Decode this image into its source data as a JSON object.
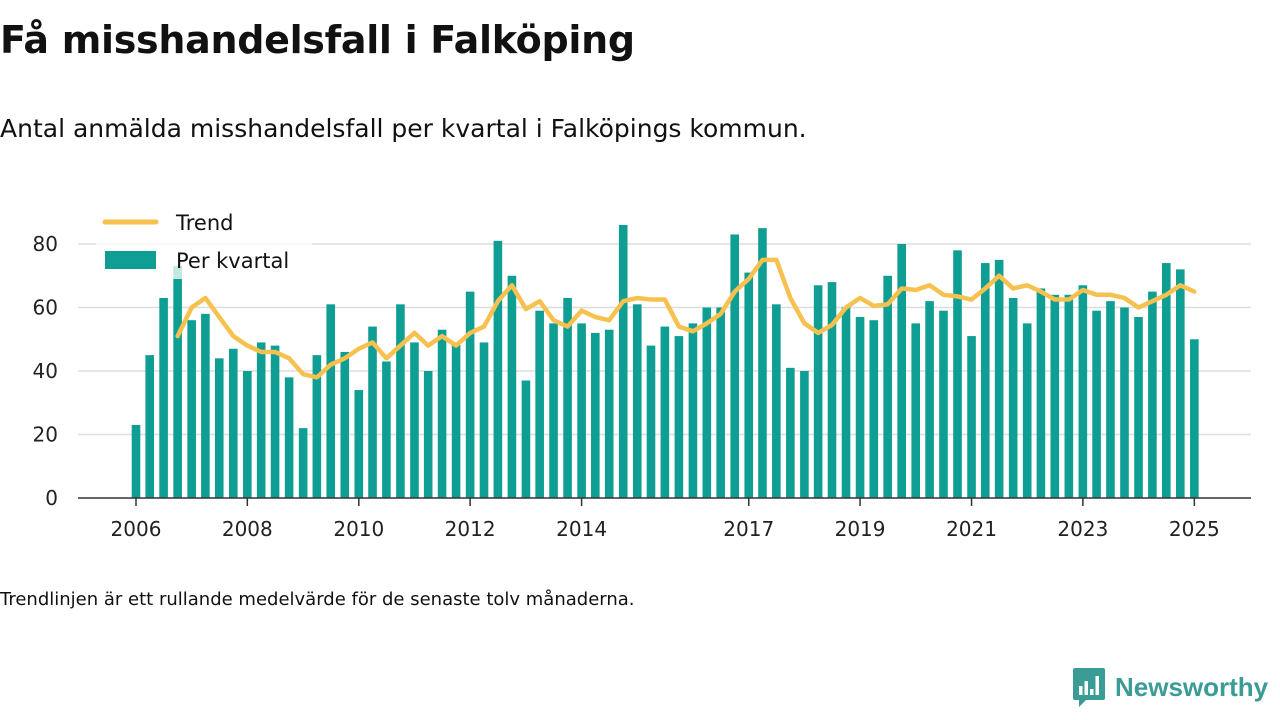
{
  "title": "Få misshandelsfall i Falköping",
  "subtitle": "Antal anmälda misshandelsfall per kvartal i Falköpings kommun.",
  "note": "Trendlinjen är ett rullande medelvärde för de senaste tolv månaderna.",
  "logo": {
    "text": "Newsworthy",
    "color": "#3a9c95"
  },
  "chart_data": {
    "type": "bar",
    "ylim": [
      0,
      92
    ],
    "yticks": [
      0,
      20,
      40,
      60,
      80
    ],
    "xticks": [
      {
        "label": "2006",
        "date": "2006-01-01"
      },
      {
        "label": "2008",
        "date": "2008-01-01"
      },
      {
        "label": "2010",
        "date": "2010-01-01"
      },
      {
        "label": "2012",
        "date": "2012-01-01"
      },
      {
        "label": "2014",
        "date": "2014-01-01"
      },
      {
        "label": "2017",
        "date": "2017-01-01"
      },
      {
        "label": "2019",
        "date": "2019-01-01"
      },
      {
        "label": "2021",
        "date": "2021-01-01"
      },
      {
        "label": "2023",
        "date": "2023-01-01"
      },
      {
        "label": "2025",
        "date": "2025-01-01"
      }
    ],
    "grid": true,
    "legend_position": "top-left",
    "series": [
      {
        "name": "Per kvartal",
        "kind": "bar",
        "color": "#0e9e93",
        "x": [
          "2006-01-01",
          "2006-04-01",
          "2006-07-01",
          "2006-10-01",
          "2007-01-01",
          "2007-04-01",
          "2007-07-01",
          "2007-10-01",
          "2008-01-01",
          "2008-04-01",
          "2008-07-01",
          "2008-10-01",
          "2009-01-01",
          "2009-04-01",
          "2009-07-01",
          "2009-10-01",
          "2010-01-01",
          "2010-04-01",
          "2010-07-01",
          "2010-10-01",
          "2011-01-01",
          "2011-04-01",
          "2011-07-01",
          "2011-10-01",
          "2012-01-01",
          "2012-04-01",
          "2012-07-01",
          "2012-10-01",
          "2013-01-01",
          "2013-04-01",
          "2013-07-01",
          "2013-10-01",
          "2014-01-01",
          "2014-04-01",
          "2014-07-01",
          "2014-10-01",
          "2015-01-01",
          "2015-04-01",
          "2015-07-01",
          "2015-10-01",
          "2016-01-01",
          "2016-04-01",
          "2016-07-01",
          "2016-10-01",
          "2017-01-01",
          "2017-04-01",
          "2017-07-01",
          "2017-10-01",
          "2018-01-01",
          "2018-04-01",
          "2018-07-01",
          "2018-10-01",
          "2019-01-01",
          "2019-04-01",
          "2019-07-01",
          "2019-10-01",
          "2020-01-01",
          "2020-04-01",
          "2020-07-01",
          "2020-10-01",
          "2021-01-01",
          "2021-04-01",
          "2021-07-01",
          "2021-10-01",
          "2022-01-01",
          "2022-04-01",
          "2022-07-01",
          "2022-10-01",
          "2023-01-01",
          "2023-04-01",
          "2023-07-01",
          "2023-10-01",
          "2024-01-01",
          "2024-04-01",
          "2024-07-01",
          "2024-10-01",
          "2025-01-01"
        ],
        "values": [
          23,
          45,
          63,
          73,
          56,
          58,
          44,
          47,
          40,
          49,
          48,
          38,
          22,
          45,
          61,
          46,
          34,
          54,
          43,
          61,
          49,
          40,
          53,
          49,
          65,
          49,
          81,
          70,
          37,
          59,
          55,
          63,
          55,
          52,
          53,
          86,
          61,
          48,
          54,
          51,
          55,
          60,
          60,
          83,
          71,
          85,
          61,
          41,
          40,
          67,
          68,
          60,
          57,
          56,
          70,
          80,
          55,
          62,
          59,
          78,
          51,
          74,
          75,
          63,
          55,
          66,
          64,
          64,
          67,
          59,
          62,
          60,
          57,
          65,
          74,
          72,
          50
        ]
      },
      {
        "name": "Trend",
        "kind": "line",
        "color": "#f6c14f",
        "x": [
          "2006-10-01",
          "2007-01-01",
          "2007-04-01",
          "2007-07-01",
          "2007-10-01",
          "2008-01-01",
          "2008-04-01",
          "2008-07-01",
          "2008-10-01",
          "2009-01-01",
          "2009-04-01",
          "2009-07-01",
          "2009-10-01",
          "2010-01-01",
          "2010-04-01",
          "2010-07-01",
          "2010-10-01",
          "2011-01-01",
          "2011-04-01",
          "2011-07-01",
          "2011-10-01",
          "2012-01-01",
          "2012-04-01",
          "2012-07-01",
          "2012-10-01",
          "2013-01-01",
          "2013-04-01",
          "2013-07-01",
          "2013-10-01",
          "2014-01-01",
          "2014-04-01",
          "2014-07-01",
          "2014-10-01",
          "2015-01-01",
          "2015-04-01",
          "2015-07-01",
          "2015-10-01",
          "2016-01-01",
          "2016-04-01",
          "2016-07-01",
          "2016-10-01",
          "2017-01-01",
          "2017-04-01",
          "2017-07-01",
          "2017-10-01",
          "2018-01-01",
          "2018-04-01",
          "2018-07-01",
          "2018-10-01",
          "2019-01-01",
          "2019-04-01",
          "2019-07-01",
          "2019-10-01",
          "2020-01-01",
          "2020-04-01",
          "2020-07-01",
          "2020-10-01",
          "2021-01-01",
          "2021-04-01",
          "2021-07-01",
          "2021-10-01",
          "2022-01-01",
          "2022-04-01",
          "2022-07-01",
          "2022-10-01",
          "2023-01-01",
          "2023-04-01",
          "2023-07-01",
          "2023-10-01",
          "2024-01-01",
          "2024-04-01",
          "2024-07-01",
          "2024-10-01",
          "2025-01-01"
        ],
        "values": [
          51,
          60,
          63,
          57,
          51,
          48,
          46,
          46,
          44,
          39,
          38,
          42,
          44,
          47,
          49,
          44,
          48,
          52,
          48,
          51,
          48,
          52,
          54,
          62,
          67,
          59.5,
          62,
          56,
          54,
          59,
          57,
          56,
          62,
          63,
          62.5,
          62.5,
          54,
          52.5,
          55,
          58,
          65,
          69,
          75,
          75,
          63,
          55,
          52,
          54.5,
          60,
          63,
          60.5,
          61,
          66,
          65.5,
          67,
          64,
          63.5,
          62.5,
          66,
          70,
          66,
          67,
          65,
          62.5,
          62.5,
          65.5,
          64,
          64,
          63,
          60,
          62,
          64,
          67,
          65
        ]
      }
    ]
  }
}
